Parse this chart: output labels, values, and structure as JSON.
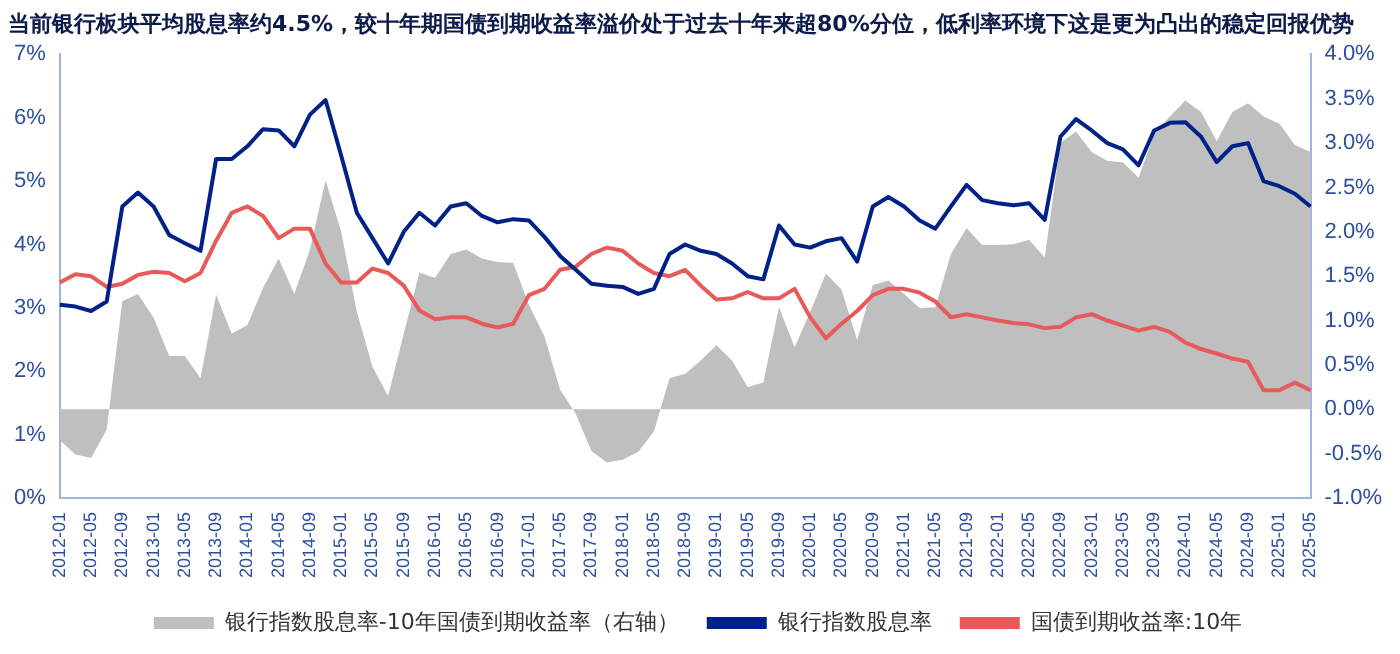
{
  "chart_data": {
    "type": "line",
    "title": "当前银行板块平均股息率约4.5%，较十年期国债到期收益率溢价处于过去十年来超80%分位，低利率环境下这是更为凸出的稳定回报优势",
    "categories": [
      "2012-01",
      null,
      "2012-05",
      null,
      "2012-09",
      null,
      "2013-01",
      null,
      "2013-05",
      null,
      "2013-09",
      null,
      "2014-01",
      null,
      "2014-05",
      null,
      "2014-09",
      null,
      "2015-01",
      null,
      "2015-05",
      null,
      "2015-09",
      null,
      "2016-01",
      null,
      "2016-05",
      null,
      "2016-09",
      null,
      "2017-01",
      null,
      "2017-05",
      null,
      "2017-09",
      null,
      "2018-01",
      null,
      "2018-05",
      null,
      "2018-09",
      null,
      "2019-01",
      null,
      "2019-05",
      null,
      "2019-09",
      null,
      "2020-01",
      null,
      "2020-05",
      null,
      "2020-09",
      null,
      "2021-01",
      null,
      "2021-05",
      null,
      "2021-09",
      null,
      "2022-01",
      null,
      "2022-05",
      null,
      "2022-09",
      null,
      "2023-01",
      null,
      "2023-05",
      null,
      "2023-09",
      null,
      "2024-01",
      null,
      "2024-05",
      null,
      "2024-09",
      null,
      "2025-01",
      null,
      "2025-05"
    ],
    "series": [
      {
        "name": "银行指数股息率-10年国债到期收益率（右轴）",
        "type": "area",
        "axis": "y2",
        "color": "#bfbfbf",
        "values": [
          -0.35,
          -0.51,
          -0.55,
          -0.23,
          1.22,
          1.3,
          1.03,
          0.6,
          0.6,
          0.35,
          1.29,
          0.85,
          0.95,
          1.37,
          1.7,
          1.3,
          1.8,
          2.58,
          2.0,
          1.1,
          0.48,
          0.15,
          0.85,
          1.54,
          1.48,
          1.75,
          1.8,
          1.7,
          1.66,
          1.65,
          1.18,
          0.82,
          0.22,
          -0.05,
          -0.47,
          -0.6,
          -0.57,
          -0.48,
          -0.25,
          0.35,
          0.4,
          0.55,
          0.72,
          0.55,
          0.25,
          0.3,
          1.15,
          0.7,
          1.1,
          1.53,
          1.35,
          0.78,
          1.4,
          1.45,
          1.3,
          1.14,
          1.15,
          1.75,
          2.04,
          1.85,
          1.85,
          1.86,
          1.91,
          1.71,
          3.0,
          3.13,
          2.9,
          2.8,
          2.78,
          2.61,
          3.1,
          3.3,
          3.48,
          3.35,
          3.02,
          3.35,
          3.45,
          3.3,
          3.22,
          2.98,
          2.9
        ]
      },
      {
        "name": "银行指数股息率",
        "type": "line",
        "color": "#002288",
        "values": [
          3.05,
          3.02,
          2.95,
          3.1,
          4.6,
          4.82,
          4.6,
          4.15,
          4.02,
          3.9,
          5.35,
          5.35,
          5.55,
          5.82,
          5.8,
          5.55,
          6.05,
          6.28,
          5.4,
          4.5,
          4.1,
          3.7,
          4.2,
          4.5,
          4.3,
          4.6,
          4.65,
          4.45,
          4.35,
          4.4,
          4.38,
          4.12,
          3.82,
          3.6,
          3.38,
          3.35,
          3.33,
          3.22,
          3.3,
          3.85,
          4.0,
          3.9,
          3.85,
          3.7,
          3.5,
          3.45,
          4.3,
          4.0,
          3.95,
          4.05,
          4.1,
          3.73,
          4.6,
          4.75,
          4.6,
          4.38,
          4.25,
          4.6,
          4.94,
          4.7,
          4.65,
          4.62,
          4.65,
          4.39,
          5.7,
          5.98,
          5.8,
          5.6,
          5.5,
          5.25,
          5.8,
          5.92,
          5.93,
          5.7,
          5.3,
          5.55,
          5.6,
          5.0,
          4.92,
          4.8,
          4.6
        ]
      },
      {
        "name": "国债到期收益率:10年",
        "type": "line",
        "color": "#e85a5a",
        "values": [
          3.4,
          3.53,
          3.5,
          3.33,
          3.38,
          3.52,
          3.57,
          3.55,
          3.42,
          3.55,
          4.06,
          4.5,
          4.6,
          4.45,
          4.1,
          4.25,
          4.25,
          3.7,
          3.4,
          3.4,
          3.62,
          3.55,
          3.35,
          2.96,
          2.82,
          2.85,
          2.85,
          2.75,
          2.69,
          2.75,
          3.2,
          3.3,
          3.6,
          3.65,
          3.85,
          3.95,
          3.9,
          3.7,
          3.55,
          3.5,
          3.6,
          3.35,
          3.13,
          3.15,
          3.25,
          3.15,
          3.15,
          3.3,
          2.85,
          2.52,
          2.75,
          2.95,
          3.2,
          3.3,
          3.3,
          3.24,
          3.1,
          2.85,
          2.9,
          2.85,
          2.8,
          2.76,
          2.74,
          2.68,
          2.7,
          2.85,
          2.9,
          2.8,
          2.72,
          2.64,
          2.7,
          2.62,
          2.45,
          2.35,
          2.28,
          2.2,
          2.15,
          1.7,
          1.7,
          1.82,
          1.7
        ]
      }
    ],
    "ylim": [
      0,
      7
    ],
    "yticks": [
      {
        "value": 0,
        "label": "0%"
      },
      {
        "value": 1,
        "label": "1%"
      },
      {
        "value": 2,
        "label": "2%"
      },
      {
        "value": 3,
        "label": "3%"
      },
      {
        "value": 4,
        "label": "4%"
      },
      {
        "value": 5,
        "label": "5%"
      },
      {
        "value": 6,
        "label": "6%"
      },
      {
        "value": 7,
        "label": "7%"
      }
    ],
    "y2lim": [
      -1,
      4
    ],
    "y2ticks": [
      {
        "value": -1,
        "label": "-1.0%"
      },
      {
        "value": -0.5,
        "label": "-0.5%"
      },
      {
        "value": 0,
        "label": "0.0%"
      },
      {
        "value": 0.5,
        "label": "0.5%"
      },
      {
        "value": 1,
        "label": "1.0%"
      },
      {
        "value": 1.5,
        "label": "1.5%"
      },
      {
        "value": 2,
        "label": "2.0%"
      },
      {
        "value": 2.5,
        "label": "2.5%"
      },
      {
        "value": 3,
        "label": "3.0%"
      },
      {
        "value": 3.5,
        "label": "3.5%"
      },
      {
        "value": 4,
        "label": "4.0%"
      }
    ],
    "grid": false,
    "legend": "bottom",
    "marker": "none"
  }
}
